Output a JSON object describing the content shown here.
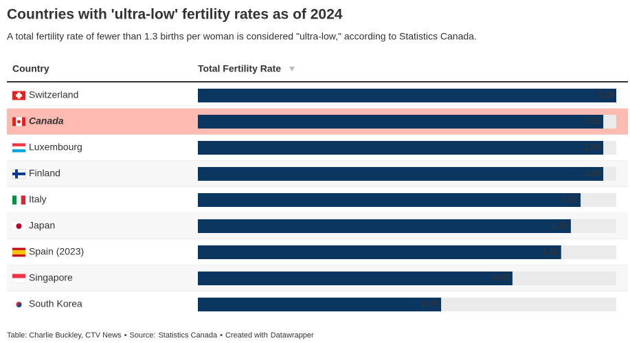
{
  "chart_data": {
    "type": "bar",
    "orientation": "horizontal",
    "title": "Countries with 'ultra-low' fertility rates as of 2024",
    "subtitle": "A total fertility rate of fewer than 1.3 births per woman is considered \"ultra-low,\" according to Statistics Canada.",
    "columns": [
      "Country",
      "Total Fertility Rate"
    ],
    "categories": [
      "Switzerland",
      "Canada",
      "Luxembourg",
      "Finland",
      "Italy",
      "Japan",
      "Spain (2023)",
      "Singapore",
      "South Korea"
    ],
    "values": [
      1.29,
      1.25,
      1.25,
      1.25,
      1.18,
      1.15,
      1.12,
      0.97,
      0.75
    ],
    "xlim": [
      0,
      1.29
    ],
    "color": "#0b3660",
    "track_color": "#ebebeb",
    "highlight_rows": [
      1
    ],
    "highlight_color": "#ffbab1",
    "footer": {
      "credit": "Table: Charlie Buckley, CTV News",
      "separator": "•",
      "source_label": "Source:",
      "source": "Statistics Canada",
      "created_label": "Created with",
      "tool": "Datawrapper"
    }
  }
}
